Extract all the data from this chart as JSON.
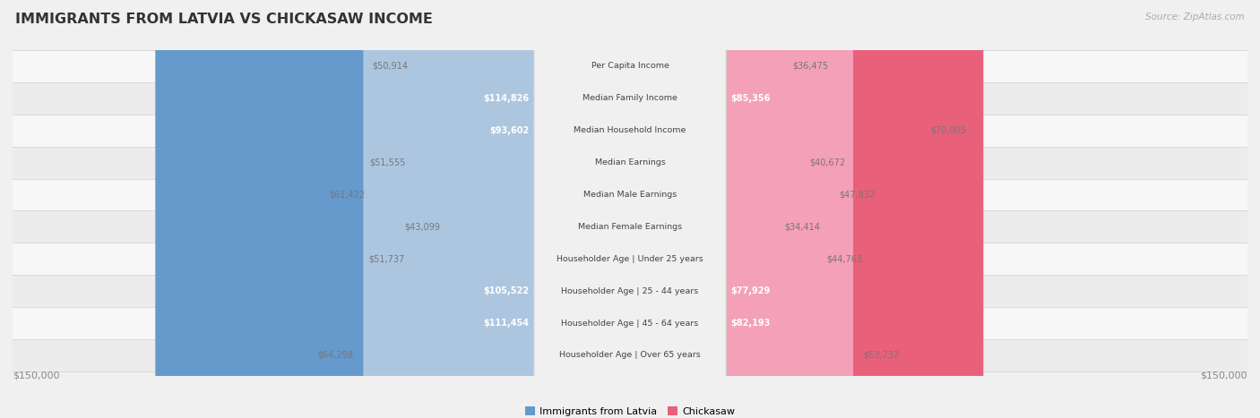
{
  "title": "IMMIGRANTS FROM LATVIA VS CHICKASAW INCOME",
  "source": "Source: ZipAtlas.com",
  "categories": [
    "Per Capita Income",
    "Median Family Income",
    "Median Household Income",
    "Median Earnings",
    "Median Male Earnings",
    "Median Female Earnings",
    "Householder Age | Under 25 years",
    "Householder Age | 25 - 44 years",
    "Householder Age | 45 - 64 years",
    "Householder Age | Over 65 years"
  ],
  "latvia_values": [
    50914,
    114826,
    93602,
    51555,
    61422,
    43099,
    51737,
    105522,
    111454,
    64298
  ],
  "chickasaw_values": [
    36475,
    85356,
    70005,
    40672,
    47832,
    34414,
    44763,
    77929,
    82193,
    53732
  ],
  "max_value": 150000,
  "latvia_color_light": "#adc6e0",
  "latvia_color_dark": "#6699cc",
  "chickasaw_color_light": "#f4a0b8",
  "chickasaw_color_dark": "#e8607a",
  "row_colors": [
    "#f7f7f7",
    "#ececec"
  ],
  "bg_color": "#f0f0f0",
  "center_label_bg": "#f0f0f0",
  "center_label_border": "#d0d0d0",
  "legend_latvia": "Immigrants from Latvia",
  "legend_chickasaw": "Chickasaw",
  "threshold_dark": 75000,
  "value_label_dark_color": "#ffffff",
  "value_label_light_color": "#777777",
  "title_color": "#333333",
  "source_color": "#aaaaaa",
  "axis_label_color": "#888888"
}
